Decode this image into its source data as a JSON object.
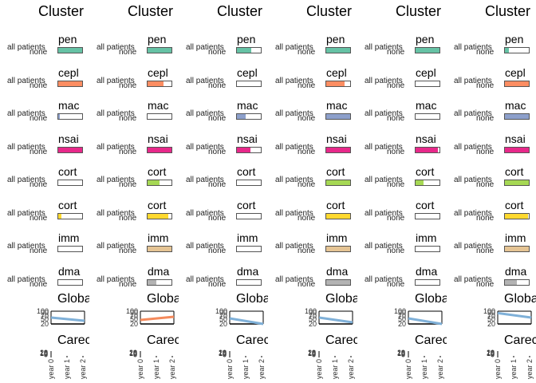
{
  "chart_data": {
    "type": "bar",
    "drug_categories": [
      "penicillins",
      "cephalosporins",
      "macrolides",
      "nsaids",
      "corticosteroids",
      "cortisone",
      "immunosuppressants",
      "dmards"
    ],
    "drug_labels_visible": [
      "pen",
      "cepl",
      "mac",
      "nsai",
      "cort",
      "cort",
      "imm",
      "dma"
    ],
    "colors": [
      "#66c2a5",
      "#fc8d62",
      "#8da0cb",
      "#e7298a",
      "#a6d854",
      "#ffd92f",
      "#e5c494",
      "#b3b3b3"
    ],
    "row_labels": [
      "all patients",
      "none"
    ],
    "global_line_color": "#f48a5c",
    "global_line_color_muted": "#7fb0d8",
    "caregiver_ticks": [
      "year 0",
      "year 1",
      "year 2"
    ],
    "panels": [
      {
        "title": "Cluster",
        "proportions": [
          1.0,
          1.0,
          0.08,
          1.0,
          0.0,
          0.12,
          0.0,
          0.0
        ],
        "global_title": "Globa",
        "global_ticks": [
          "100",
          "90",
          "70",
          "50",
          "20"
        ],
        "global_line": [
          60,
          40
        ],
        "global_highlight": false,
        "caregiver_title": "Carec",
        "caregiver_yticks": [
          "20",
          "15",
          "10",
          "5",
          "0"
        ]
      },
      {
        "title": "Cluster",
        "proportions": [
          1.0,
          0.65,
          0.0,
          1.0,
          0.5,
          0.85,
          1.0,
          0.38
        ],
        "global_title": "Globa",
        "global_ticks": [
          "100",
          "90",
          "70",
          "50",
          "20"
        ],
        "global_line": [
          45,
          65
        ],
        "global_highlight": true,
        "caregiver_title": "Carec",
        "caregiver_yticks": [
          "20",
          "15",
          "10",
          "5",
          "0"
        ]
      },
      {
        "title": "Cluster",
        "proportions": [
          0.6,
          0.0,
          0.38,
          0.55,
          0.0,
          0.0,
          0.0,
          0.0
        ],
        "global_title": "Globa",
        "global_ticks": [
          "100",
          "90",
          "70",
          "50",
          "20"
        ],
        "global_line": [
          55,
          20
        ],
        "global_highlight": false,
        "caregiver_title": "Carec",
        "caregiver_yticks": [
          "20",
          "15",
          "10",
          "5",
          "0"
        ]
      },
      {
        "title": "Cluster",
        "proportions": [
          1.0,
          0.75,
          1.0,
          1.0,
          1.0,
          1.0,
          1.0,
          1.0
        ],
        "global_title": "Globa",
        "global_ticks": [
          "100",
          "90",
          "70",
          "50",
          "20"
        ],
        "global_line": [
          60,
          30
        ],
        "global_highlight": false,
        "caregiver_title": "Carec",
        "caregiver_yticks": [
          "20",
          "15",
          "10",
          "5",
          "0"
        ]
      },
      {
        "title": "Cluster",
        "proportions": [
          1.0,
          0.0,
          0.0,
          0.92,
          0.32,
          0.0,
          0.0,
          0.0
        ],
        "global_title": "Globa",
        "global_ticks": [
          "100",
          "90",
          "70",
          "50",
          "20"
        ],
        "global_line": [
          55,
          20
        ],
        "global_highlight": false,
        "caregiver_title": "Carec",
        "caregiver_yticks": [
          "20",
          "15",
          "10",
          "5",
          "0"
        ]
      },
      {
        "title": "Cluster",
        "proportions": [
          0.18,
          1.0,
          1.0,
          1.0,
          1.0,
          0.95,
          1.0,
          0.5
        ],
        "global_title": "Globa",
        "global_ticks": [
          "100",
          "90",
          "70",
          "50",
          "20"
        ],
        "global_line": [
          88,
          60
        ],
        "global_highlight": false,
        "caregiver_title": "Carec",
        "caregiver_yticks": [
          "20",
          "15",
          "10",
          "5",
          "0"
        ]
      }
    ]
  }
}
